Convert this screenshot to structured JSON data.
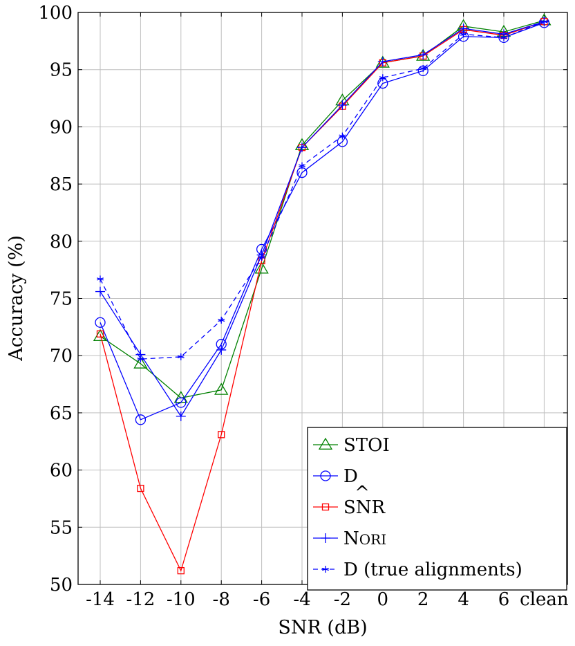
{
  "chart_data": {
    "type": "line",
    "xlabel": "SNR (dB)",
    "ylabel": "Accuracy (%)",
    "categories": [
      "-14",
      "-12",
      "-10",
      "-8",
      "-6",
      "-4",
      "-2",
      "0",
      "2",
      "4",
      "6",
      "clean"
    ],
    "yticks": [
      "50",
      "55",
      "60",
      "65",
      "70",
      "75",
      "80",
      "85",
      "90",
      "95",
      "100"
    ],
    "ylim": [
      50,
      100
    ],
    "grid": true,
    "legend_position": "bottom-right",
    "series": [
      {
        "name": "STOI",
        "color": "#008000",
        "marker": "triangle",
        "dashed": false,
        "values": [
          71.7,
          69.3,
          66.3,
          67.0,
          77.6,
          88.4,
          92.3,
          95.6,
          96.2,
          98.8,
          98.3,
          99.3
        ]
      },
      {
        "name": "D",
        "color": "#0000ff",
        "marker": "circle",
        "dashed": false,
        "values": [
          72.9,
          64.4,
          65.9,
          71.0,
          79.3,
          86.0,
          88.7,
          93.8,
          94.9,
          97.9,
          97.8,
          99.1
        ]
      },
      {
        "name": "SNR",
        "name_hat": "^",
        "color": "#ff0000",
        "marker": "square",
        "dashed": false,
        "values": [
          71.9,
          58.4,
          51.2,
          63.1,
          78.3,
          88.2,
          91.8,
          95.6,
          96.2,
          98.5,
          98.0,
          99.2
        ]
      },
      {
        "name": "Nori",
        "color": "#0000ff",
        "marker": "plus",
        "dashed": false,
        "values": [
          75.6,
          70.1,
          64.7,
          70.5,
          78.8,
          88.2,
          91.9,
          95.7,
          96.3,
          98.6,
          98.1,
          99.2
        ]
      },
      {
        "name": "D (true alignments)",
        "color": "#0000ff",
        "marker": "star",
        "dashed": true,
        "values": [
          76.7,
          69.7,
          69.9,
          73.1,
          78.6,
          86.6,
          89.2,
          94.3,
          95.1,
          98.1,
          97.8,
          99.2
        ]
      }
    ]
  }
}
